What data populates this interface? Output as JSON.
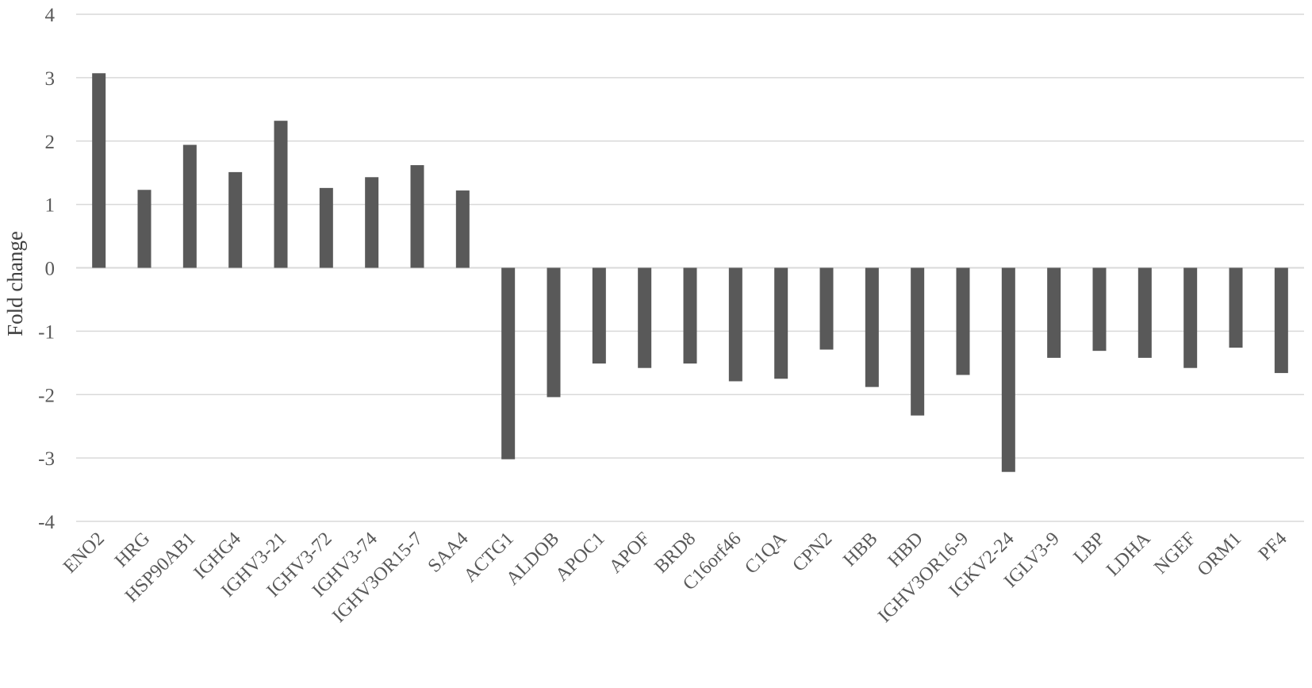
{
  "chart_data": {
    "type": "bar",
    "title": "",
    "xlabel": "",
    "ylabel": "Fold change",
    "ylim": [
      -4,
      4
    ],
    "yticks": [
      4,
      3,
      2,
      1,
      0,
      -1,
      -2,
      -3,
      -4
    ],
    "grid": true,
    "legend": "none",
    "bar_color": "#595959",
    "categories": [
      "ENO2",
      "HRG",
      "HSP90AB1",
      "IGHG4",
      "IGHV3-21",
      "IGHV3-72",
      "IGHV3-74",
      "IGHV3OR15-7",
      "SAA4",
      "ACTG1",
      "ALDOB",
      "APOC1",
      "APOF",
      "BRD8",
      "C16orf46",
      "C1QA",
      "CPN2",
      "HBB",
      "HBD",
      "IGHV3OR16-9",
      "IGKV2-24",
      "IGLV3-9",
      "LBP",
      "LDHA",
      "NGEF",
      "ORM1",
      "PF4"
    ],
    "values": [
      3.07,
      1.23,
      1.94,
      1.51,
      2.32,
      1.26,
      1.43,
      1.62,
      1.22,
      -3.02,
      -2.04,
      -1.51,
      -1.58,
      -1.51,
      -1.79,
      -1.75,
      -1.29,
      -1.88,
      -2.33,
      -1.69,
      -3.22,
      -1.42,
      -1.31,
      -1.42,
      -1.58,
      -1.26,
      -1.66
    ]
  }
}
